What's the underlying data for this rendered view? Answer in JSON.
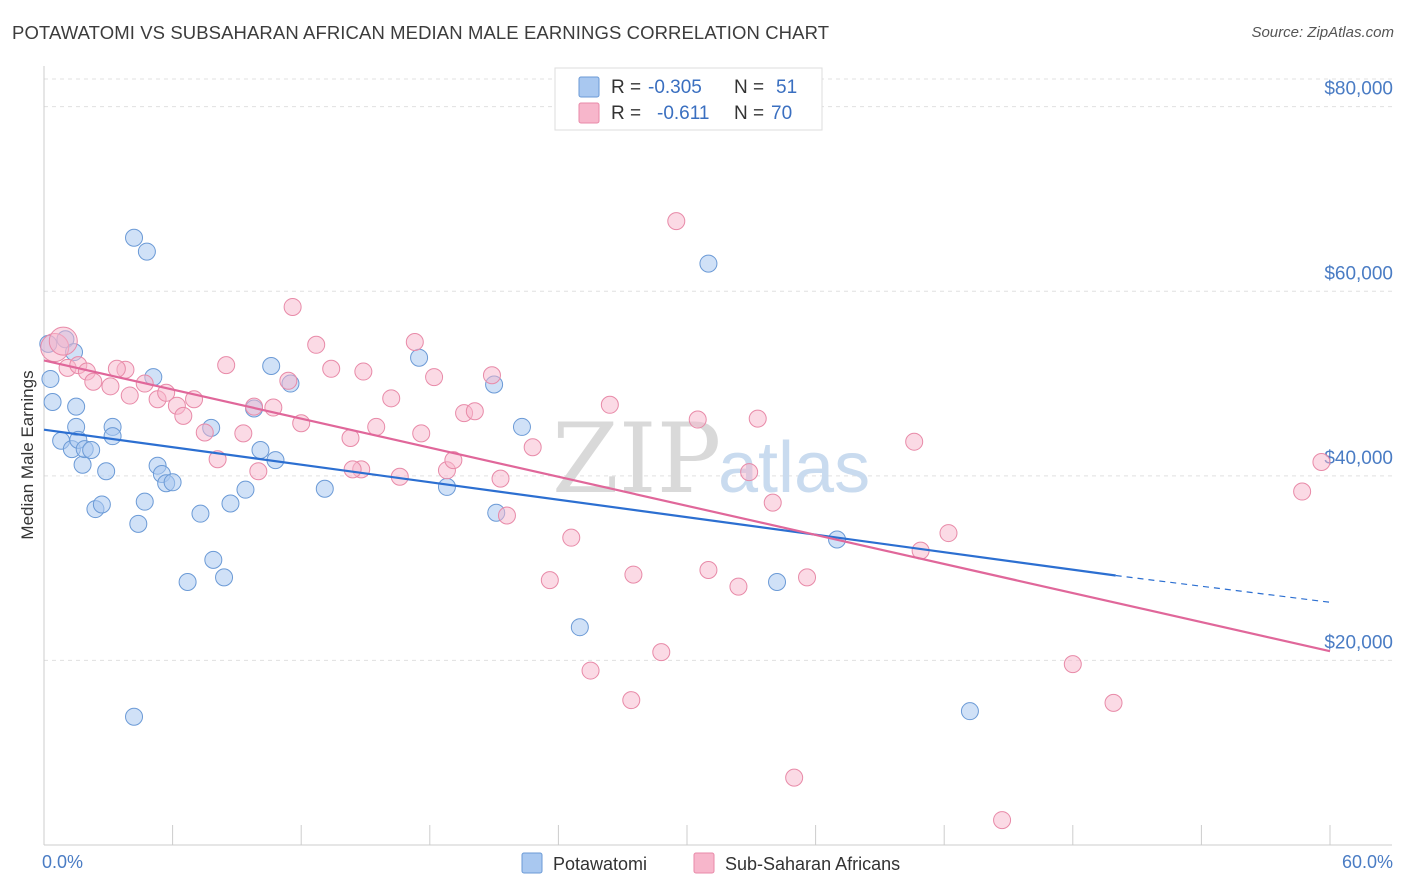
{
  "header": {
    "title": "POTAWATOMI VS SUBSAHARAN AFRICAN MEDIAN MALE EARNINGS CORRELATION CHART",
    "source": "Source: ZipAtlas.com"
  },
  "watermark": {
    "zip": "ZIP",
    "atlas": "atlas"
  },
  "legend": {
    "rows": [
      {
        "r_label": "R =",
        "r_value": "-0.305",
        "n_label": "N =",
        "n_value": "51",
        "color": "#a9c8f0"
      },
      {
        "r_label": "R =",
        "r_value": "-0.611",
        "n_label": "N =",
        "n_value": "70",
        "color": "#f7b6cb"
      }
    ]
  },
  "colors": {
    "blue_fill": "#a9c8f0",
    "blue_stroke": "#6b9ad6",
    "blue_line": "#2c6fd1",
    "pink_fill": "#f7b6cb",
    "pink_stroke": "#e88aa8",
    "pink_line": "#e0679a",
    "grid": "#e0e0e0",
    "axis_text": "#4a7cc4"
  },
  "chart_data": {
    "type": "scatter",
    "xlabel": "",
    "ylabel": "Median Male Earnings",
    "xlim": [
      0,
      60
    ],
    "ylim": [
      0,
      83000
    ],
    "x_tick_labels": [
      "0.0%",
      "60.0%"
    ],
    "y_ticks": [
      20000,
      40000,
      60000,
      80000
    ],
    "y_tick_labels": [
      "$20,000",
      "$40,000",
      "$60,000",
      "$80,000"
    ],
    "grid": true,
    "legend_position": "top-center",
    "series": [
      {
        "name": "Potawatomi",
        "color": "#a9c8f0",
        "points": [
          [
            0.3,
            50500
          ],
          [
            0.4,
            48000
          ],
          [
            0.8,
            43800
          ],
          [
            1.0,
            54800
          ],
          [
            1.3,
            42900
          ],
          [
            1.4,
            53400
          ],
          [
            1.5,
            47500
          ],
          [
            1.5,
            45300
          ],
          [
            1.6,
            43900
          ],
          [
            1.8,
            41200
          ],
          [
            1.9,
            42900
          ],
          [
            2.2,
            42800
          ],
          [
            2.4,
            36400
          ],
          [
            2.7,
            36900
          ],
          [
            2.9,
            40500
          ],
          [
            3.2,
            45300
          ],
          [
            3.2,
            44300
          ],
          [
            4.2,
            65800
          ],
          [
            4.2,
            13900
          ],
          [
            4.4,
            34800
          ],
          [
            4.7,
            37200
          ],
          [
            4.8,
            64300
          ],
          [
            5.1,
            50700
          ],
          [
            5.3,
            41100
          ],
          [
            5.5,
            40200
          ],
          [
            5.7,
            39200
          ],
          [
            6.0,
            39300
          ],
          [
            6.7,
            28500
          ],
          [
            7.3,
            35900
          ],
          [
            7.8,
            45200
          ],
          [
            7.9,
            30900
          ],
          [
            8.4,
            29000
          ],
          [
            8.7,
            37000
          ],
          [
            9.4,
            38500
          ],
          [
            9.8,
            47300
          ],
          [
            10.1,
            42800
          ],
          [
            10.6,
            51900
          ],
          [
            10.8,
            41700
          ],
          [
            11.5,
            50000
          ],
          [
            13.1,
            38600
          ],
          [
            17.5,
            52800
          ],
          [
            18.8,
            38800
          ],
          [
            21.0,
            49900
          ],
          [
            21.1,
            36000
          ],
          [
            22.3,
            45300
          ],
          [
            25.0,
            23600
          ],
          [
            31.0,
            63000
          ],
          [
            34.2,
            28500
          ],
          [
            37.0,
            33100
          ],
          [
            43.2,
            14500
          ],
          [
            0.2,
            54300
          ]
        ]
      },
      {
        "name": "Sub-Saharan Africans",
        "color": "#f7b6cb",
        "points": [
          [
            0.5,
            53900
          ],
          [
            0.9,
            54600
          ],
          [
            1.1,
            51700
          ],
          [
            1.6,
            52000
          ],
          [
            2.0,
            51300
          ],
          [
            2.3,
            50200
          ],
          [
            3.1,
            49700
          ],
          [
            3.8,
            51500
          ],
          [
            4.0,
            48700
          ],
          [
            4.7,
            50000
          ],
          [
            5.3,
            48300
          ],
          [
            5.7,
            49000
          ],
          [
            6.2,
            47600
          ],
          [
            6.5,
            46500
          ],
          [
            7.0,
            48300
          ],
          [
            7.5,
            44700
          ],
          [
            8.1,
            41800
          ],
          [
            8.5,
            52000
          ],
          [
            9.3,
            44600
          ],
          [
            9.8,
            47500
          ],
          [
            10.0,
            40500
          ],
          [
            10.7,
            47400
          ],
          [
            11.4,
            50300
          ],
          [
            11.6,
            58300
          ],
          [
            12.0,
            45700
          ],
          [
            12.7,
            54200
          ],
          [
            13.4,
            51600
          ],
          [
            14.3,
            44100
          ],
          [
            14.8,
            40700
          ],
          [
            14.9,
            51300
          ],
          [
            15.5,
            45300
          ],
          [
            16.2,
            48400
          ],
          [
            16.6,
            39900
          ],
          [
            17.3,
            54500
          ],
          [
            17.6,
            44600
          ],
          [
            18.2,
            50700
          ],
          [
            18.8,
            40600
          ],
          [
            19.1,
            41700
          ],
          [
            19.6,
            46800
          ],
          [
            20.1,
            47000
          ],
          [
            20.9,
            50900
          ],
          [
            21.3,
            39700
          ],
          [
            21.6,
            35700
          ],
          [
            22.8,
            43100
          ],
          [
            23.6,
            28700
          ],
          [
            24.6,
            33300
          ],
          [
            25.5,
            18900
          ],
          [
            26.4,
            47700
          ],
          [
            27.4,
            15700
          ],
          [
            27.5,
            29300
          ],
          [
            28.8,
            20900
          ],
          [
            29.5,
            67600
          ],
          [
            30.5,
            46100
          ],
          [
            31.0,
            29800
          ],
          [
            32.4,
            28000
          ],
          [
            32.9,
            40400
          ],
          [
            33.3,
            46200
          ],
          [
            34.0,
            37100
          ],
          [
            35.6,
            29000
          ],
          [
            35.0,
            7300
          ],
          [
            40.6,
            43700
          ],
          [
            40.9,
            31900
          ],
          [
            42.2,
            33800
          ],
          [
            44.7,
            2700
          ],
          [
            48.0,
            19600
          ],
          [
            49.9,
            15400
          ],
          [
            58.7,
            38300
          ],
          [
            59.6,
            41500
          ],
          [
            14.4,
            40700
          ],
          [
            3.4,
            51600
          ]
        ]
      }
    ],
    "trendlines": [
      {
        "series": "Potawatomi",
        "x": [
          0,
          50
        ],
        "y": [
          45000,
          29200
        ],
        "dashed_extension_to": [
          60,
          26300
        ]
      },
      {
        "series": "Sub-Saharan Africans",
        "x": [
          0,
          60
        ],
        "y": [
          52500,
          21000
        ]
      }
    ]
  }
}
